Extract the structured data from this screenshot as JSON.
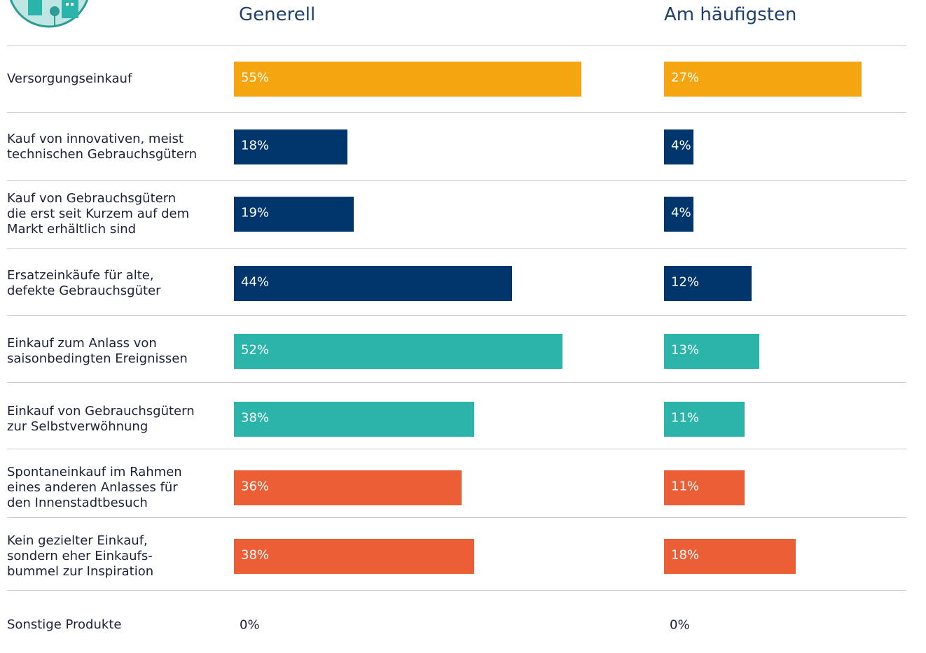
{
  "chart_data": {
    "type": "bar",
    "orientation": "horizontal",
    "categories": [
      "Versorgungseinkauf",
      "Kauf von innovativen, meist\ntechnischen Gebrauchsgütern",
      "Kauf von Gebrauchsgütern\ndie erst seit Kurzem auf dem\nMarkt erhältlich sind",
      "Ersatzeinkäufe für alte,\ndefekte Gebrauchsgüter",
      "Einkauf zum Anlass von\nsaisonbedingten Ereignissen",
      "Einkauf von Gebrauchsgütern\nzur Selbstverwöhnung",
      "Spontaneinkauf im Rahmen\neines anderen Anlasses für\nden Innenstadtbesuch",
      "Kein gezielter Einkauf,\nsondern eher Einkaufs-\nbummel zur Inspiration",
      "Sonstige Produkte"
    ],
    "colors": [
      "#f5a50f",
      "#00366b",
      "#00366b",
      "#00366b",
      "#2bb5aa",
      "#2bb5aa",
      "#eb5e36",
      "#eb5e36",
      "#eb5e36"
    ],
    "series": [
      {
        "name": "Generell",
        "values": [
          55,
          18,
          19,
          44,
          52,
          38,
          36,
          38,
          0
        ],
        "value_labels": [
          "55%",
          "18%",
          "19%",
          "44%",
          "52%",
          "38%",
          "36%",
          "38%",
          "0%"
        ]
      },
      {
        "name": "Am häufigsten",
        "values": [
          27,
          4,
          4,
          12,
          13,
          11,
          11,
          18,
          0
        ],
        "value_labels": [
          "27%",
          "4%",
          "4%",
          "12%",
          "13%",
          "11%",
          "11%",
          "18%",
          "0%"
        ]
      }
    ]
  }
}
